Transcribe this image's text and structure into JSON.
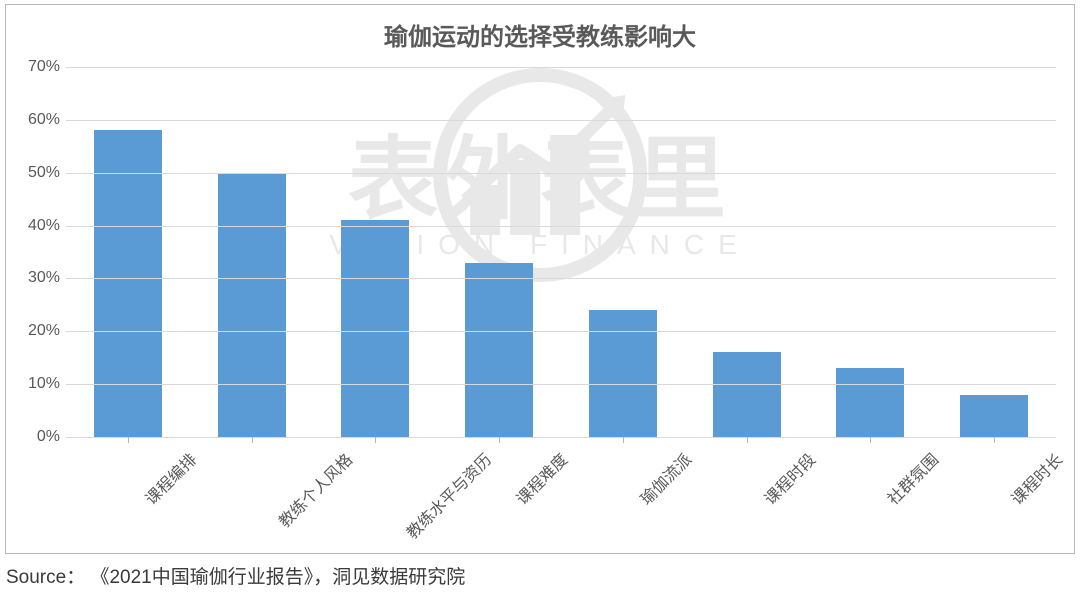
{
  "chart": {
    "type": "bar",
    "title": "瑜伽运动的选择受教练影响大",
    "title_fontsize": 24,
    "title_color": "#595959",
    "categories": [
      "课程编排",
      "教练个人风格",
      "教练水平与资历",
      "课程难度",
      "瑜伽流派",
      "课程时段",
      "社群氛围",
      "课程时长"
    ],
    "values": [
      58,
      50,
      41,
      33,
      24,
      16,
      13,
      8
    ],
    "bar_color": "#5b9bd5",
    "background_color": "#ffffff",
    "grid_color": "#d9d9d9",
    "border_color": "#b6b6b6",
    "label_color": "#595959",
    "label_fontsize": 16,
    "y_axis": {
      "min": 0,
      "max": 70,
      "tick_step": 10,
      "tick_suffix": "%"
    },
    "bar_width_ratio": 0.55,
    "x_label_rotation_deg": -45
  },
  "watermark": {
    "cn_text": "表外表里",
    "en_text": "VISION FINANCE",
    "color": "#e8e8e8"
  },
  "source_label": "Source：",
  "source_text": "《2021中国瑜伽行业报告》，洞见数据研究院"
}
